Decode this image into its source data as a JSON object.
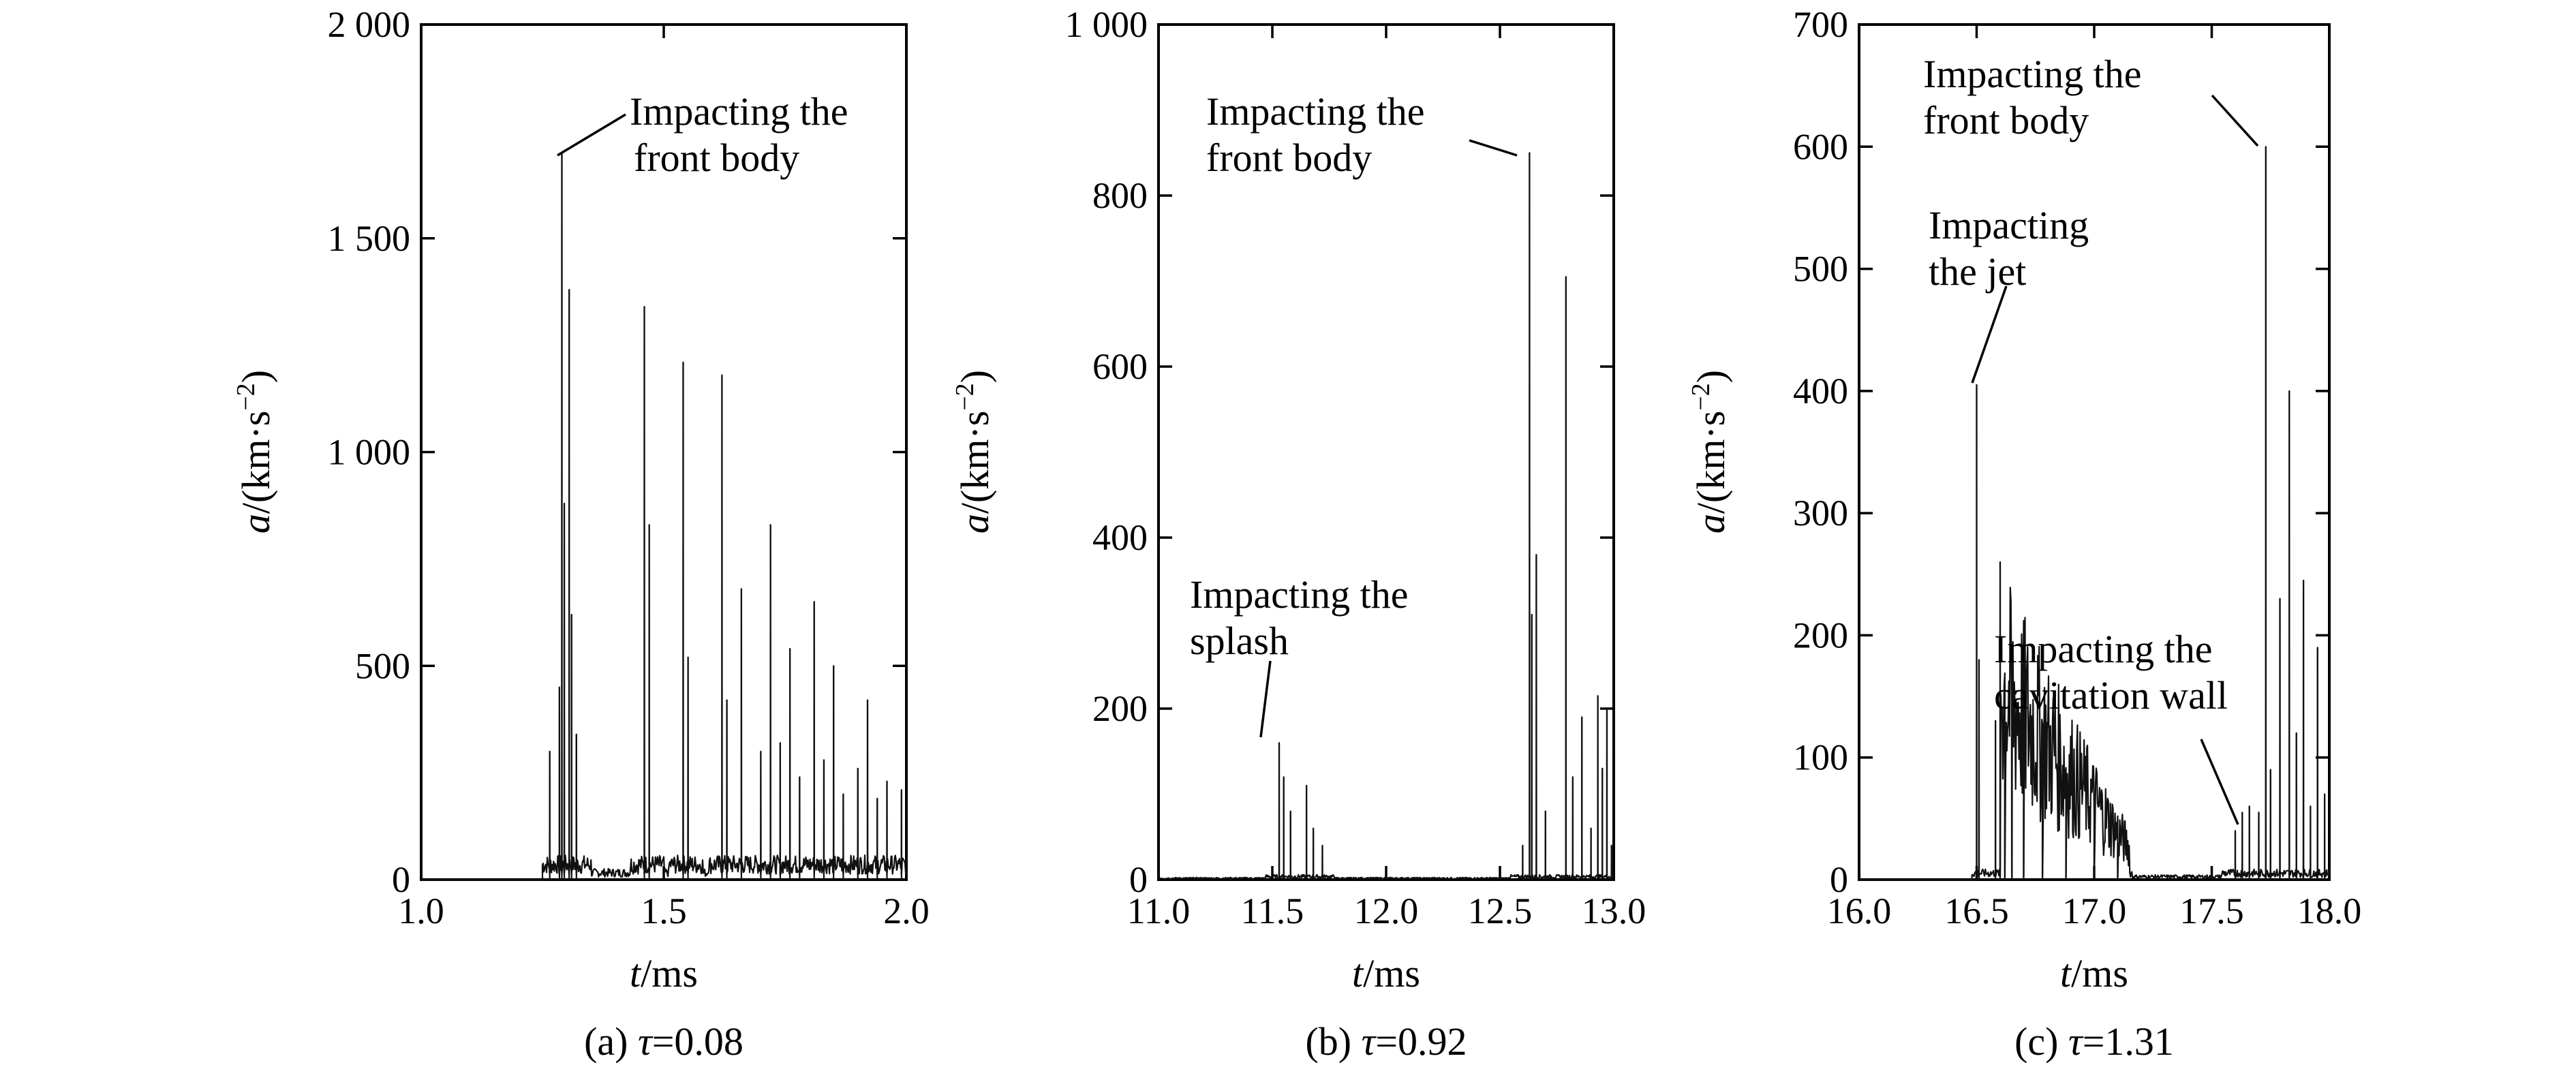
{
  "chart_data": [
    {
      "type": "line",
      "caption_prefix": "(a) ",
      "caption_symbol": "τ",
      "caption_value": "=0.08",
      "xlabel_symbol": "t",
      "xlabel_unit": "/ms",
      "ylabel_symbol": "a",
      "ylabel_unit": "/(km·s",
      "ylabel_exp": "−2",
      "ylabel_close": ")",
      "xlim": [
        1.0,
        2.0
      ],
      "ylim": [
        0,
        2000
      ],
      "xticks": [
        1.0,
        1.5,
        2.0
      ],
      "xtick_labels": [
        "1.0",
        "1.5",
        "2.0"
      ],
      "yticks": [
        0,
        500,
        1000,
        1500,
        2000
      ],
      "ytick_labels": [
        "0",
        "500",
        "1 000",
        "1 500",
        "2 000"
      ],
      "baseline_start": 1.25,
      "baseline_level": 20,
      "peaks": [
        {
          "x": 1.265,
          "y": 300
        },
        {
          "x": 1.285,
          "y": 450
        },
        {
          "x": 1.29,
          "y": 1700
        },
        {
          "x": 1.295,
          "y": 880
        },
        {
          "x": 1.305,
          "y": 1380
        },
        {
          "x": 1.31,
          "y": 620
        },
        {
          "x": 1.32,
          "y": 340
        },
        {
          "x": 1.46,
          "y": 1340
        },
        {
          "x": 1.47,
          "y": 830
        },
        {
          "x": 1.54,
          "y": 1210
        },
        {
          "x": 1.55,
          "y": 520
        },
        {
          "x": 1.62,
          "y": 1180
        },
        {
          "x": 1.63,
          "y": 420
        },
        {
          "x": 1.66,
          "y": 680
        },
        {
          "x": 1.7,
          "y": 300
        },
        {
          "x": 1.72,
          "y": 830
        },
        {
          "x": 1.74,
          "y": 320
        },
        {
          "x": 1.76,
          "y": 540
        },
        {
          "x": 1.78,
          "y": 240
        },
        {
          "x": 1.81,
          "y": 650
        },
        {
          "x": 1.83,
          "y": 280
        },
        {
          "x": 1.85,
          "y": 500
        },
        {
          "x": 1.87,
          "y": 200
        },
        {
          "x": 1.9,
          "y": 260
        },
        {
          "x": 1.92,
          "y": 420
        },
        {
          "x": 1.94,
          "y": 190
        },
        {
          "x": 1.96,
          "y": 230
        },
        {
          "x": 1.99,
          "y": 210
        }
      ],
      "annotations": [
        {
          "lines": [
            "Impacting the",
            "front body"
          ],
          "target": [
            1.29,
            1700
          ]
        }
      ]
    },
    {
      "type": "line",
      "caption_prefix": "(b) ",
      "caption_symbol": "τ",
      "caption_value": "=0.92",
      "xlabel_symbol": "t",
      "xlabel_unit": "/ms",
      "ylabel_symbol": "a",
      "ylabel_unit": "/(km·s",
      "ylabel_exp": "−2",
      "ylabel_close": ")",
      "xlim": [
        11.0,
        13.0
      ],
      "ylim": [
        0,
        1000
      ],
      "xticks": [
        11.0,
        12.0,
        13.0
      ],
      "xticks_minor": [
        11.5,
        12.5
      ],
      "xtick_labels": [
        "11.0",
        "11.5",
        "12.0",
        "12.5",
        "13.0"
      ],
      "xtick_label_positions": [
        11.0,
        11.5,
        12.0,
        12.5,
        13.0
      ],
      "yticks": [
        0,
        200,
        400,
        600,
        800,
        1000
      ],
      "ytick_labels": [
        "0",
        "200",
        "400",
        "600",
        "800",
        "1 000"
      ],
      "baseline_start": 11.0,
      "baseline_level": 2,
      "peaks": [
        {
          "x": 11.53,
          "y": 160
        },
        {
          "x": 11.55,
          "y": 120
        },
        {
          "x": 11.58,
          "y": 80
        },
        {
          "x": 11.65,
          "y": 110
        },
        {
          "x": 11.68,
          "y": 60
        },
        {
          "x": 11.72,
          "y": 40
        },
        {
          "x": 12.6,
          "y": 40
        },
        {
          "x": 12.63,
          "y": 850
        },
        {
          "x": 12.64,
          "y": 310
        },
        {
          "x": 12.66,
          "y": 380
        },
        {
          "x": 12.7,
          "y": 80
        },
        {
          "x": 12.79,
          "y": 705
        },
        {
          "x": 12.82,
          "y": 120
        },
        {
          "x": 12.86,
          "y": 190
        },
        {
          "x": 12.9,
          "y": 60
        },
        {
          "x": 12.93,
          "y": 215
        },
        {
          "x": 12.95,
          "y": 130
        },
        {
          "x": 12.97,
          "y": 200
        },
        {
          "x": 12.99,
          "y": 40
        }
      ],
      "annotations": [
        {
          "lines": [
            "Impacting the",
            "front body"
          ],
          "target": [
            12.63,
            850
          ]
        },
        {
          "lines": [
            "Impacting the",
            "splash"
          ],
          "target": [
            11.53,
            160
          ]
        }
      ]
    },
    {
      "type": "line",
      "caption_prefix": "(c) ",
      "caption_symbol": "τ",
      "caption_value": "=1.31",
      "xlabel_symbol": "t",
      "xlabel_unit": "/ms",
      "ylabel_symbol": "a",
      "ylabel_unit": "/(km·s",
      "ylabel_exp": "−2",
      "ylabel_close": ")",
      "xlim": [
        16.0,
        18.0
      ],
      "ylim": [
        0,
        700
      ],
      "xticks": [
        16.0,
        16.5,
        17.0,
        17.5,
        18.0
      ],
      "xtick_labels": [
        "16.0",
        "16.5",
        "17.0",
        "17.5",
        "18.0"
      ],
      "yticks": [
        0,
        100,
        200,
        300,
        400,
        500,
        600,
        700
      ],
      "ytick_labels": [
        "0",
        "100",
        "200",
        "300",
        "400",
        "500",
        "600",
        "700"
      ],
      "baseline_start": 16.48,
      "baseline_level": 3,
      "peaks": [
        {
          "x": 16.5,
          "y": 405
        },
        {
          "x": 16.51,
          "y": 180
        },
        {
          "x": 16.58,
          "y": 130
        },
        {
          "x": 16.6,
          "y": 260
        },
        {
          "x": 16.62,
          "y": 100
        },
        {
          "x": 16.65,
          "y": 80
        },
        {
          "x": 16.7,
          "y": 60
        },
        {
          "x": 16.78,
          "y": 45
        },
        {
          "x": 16.88,
          "y": 35
        },
        {
          "x": 17.0,
          "y": 25
        },
        {
          "x": 17.1,
          "y": 30
        },
        {
          "x": 17.6,
          "y": 40
        },
        {
          "x": 17.63,
          "y": 55
        },
        {
          "x": 17.66,
          "y": 60
        },
        {
          "x": 17.7,
          "y": 55
        },
        {
          "x": 17.73,
          "y": 600
        },
        {
          "x": 17.75,
          "y": 90
        },
        {
          "x": 17.79,
          "y": 230
        },
        {
          "x": 17.83,
          "y": 400
        },
        {
          "x": 17.86,
          "y": 120
        },
        {
          "x": 17.89,
          "y": 245
        },
        {
          "x": 17.92,
          "y": 60
        },
        {
          "x": 17.95,
          "y": 190
        },
        {
          "x": 17.98,
          "y": 70
        }
      ],
      "decay_segment": {
        "from": 16.6,
        "to": 17.15,
        "start_level": 90,
        "end_level": 15
      },
      "annotations": [
        {
          "lines": [
            "Impacting the",
            "front body"
          ],
          "target": [
            17.73,
            600
          ]
        },
        {
          "lines": [
            "Impacting",
            "the jet"
          ],
          "target": [
            16.5,
            405
          ]
        },
        {
          "lines": [
            "Impacting the",
            "cavitation wall"
          ],
          "target": [
            17.63,
            50
          ]
        }
      ]
    }
  ]
}
